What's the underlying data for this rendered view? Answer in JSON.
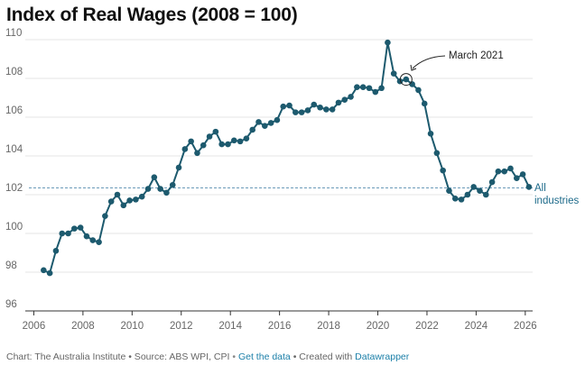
{
  "chart_data": {
    "type": "line",
    "title": "Index of Real Wages (2008 = 100)",
    "xlabel": "",
    "ylabel": "",
    "xlim": [
      2005.8,
      2026.3
    ],
    "ylim": [
      96,
      110
    ],
    "x_ticks": [
      "2006",
      "2008",
      "2010",
      "2012",
      "2014",
      "2016",
      "2018",
      "2020",
      "2022",
      "2024",
      "2026"
    ],
    "y_ticks": [
      "96",
      "98",
      "100",
      "102",
      "104",
      "106",
      "108",
      "110"
    ],
    "grid": true,
    "series": [
      {
        "name": "All industries",
        "color": "#1d5a6e",
        "points": [
          [
            2006.4,
            98.1
          ],
          [
            2006.65,
            97.95
          ],
          [
            2006.9,
            99.1
          ],
          [
            2007.15,
            100.0
          ],
          [
            2007.4,
            100.0
          ],
          [
            2007.65,
            100.25
          ],
          [
            2007.9,
            100.3
          ],
          [
            2008.15,
            99.85
          ],
          [
            2008.4,
            99.65
          ],
          [
            2008.65,
            99.55
          ],
          [
            2008.9,
            100.9
          ],
          [
            2009.15,
            101.65
          ],
          [
            2009.4,
            102.0
          ],
          [
            2009.65,
            101.45
          ],
          [
            2009.9,
            101.7
          ],
          [
            2010.15,
            101.75
          ],
          [
            2010.4,
            101.9
          ],
          [
            2010.65,
            102.3
          ],
          [
            2010.9,
            102.9
          ],
          [
            2011.15,
            102.3
          ],
          [
            2011.4,
            102.1
          ],
          [
            2011.65,
            102.5
          ],
          [
            2011.9,
            103.4
          ],
          [
            2012.15,
            104.35
          ],
          [
            2012.4,
            104.75
          ],
          [
            2012.65,
            104.15
          ],
          [
            2012.9,
            104.55
          ],
          [
            2013.15,
            105.0
          ],
          [
            2013.4,
            105.25
          ],
          [
            2013.65,
            104.6
          ],
          [
            2013.9,
            104.6
          ],
          [
            2014.15,
            104.8
          ],
          [
            2014.4,
            104.75
          ],
          [
            2014.65,
            104.9
          ],
          [
            2014.9,
            105.35
          ],
          [
            2015.15,
            105.75
          ],
          [
            2015.4,
            105.55
          ],
          [
            2015.65,
            105.7
          ],
          [
            2015.9,
            105.85
          ],
          [
            2016.15,
            106.55
          ],
          [
            2016.4,
            106.6
          ],
          [
            2016.65,
            106.25
          ],
          [
            2016.9,
            106.25
          ],
          [
            2017.15,
            106.35
          ],
          [
            2017.4,
            106.65
          ],
          [
            2017.65,
            106.5
          ],
          [
            2017.9,
            106.4
          ],
          [
            2018.15,
            106.4
          ],
          [
            2018.4,
            106.75
          ],
          [
            2018.65,
            106.9
          ],
          [
            2018.9,
            107.05
          ],
          [
            2019.15,
            107.55
          ],
          [
            2019.4,
            107.55
          ],
          [
            2019.65,
            107.5
          ],
          [
            2019.9,
            107.3
          ],
          [
            2020.15,
            107.5
          ],
          [
            2020.4,
            109.85
          ],
          [
            2020.65,
            108.25
          ],
          [
            2020.9,
            107.85
          ],
          [
            2021.15,
            107.95
          ],
          [
            2021.4,
            107.7
          ],
          [
            2021.65,
            107.4
          ],
          [
            2021.9,
            106.7
          ],
          [
            2022.15,
            105.15
          ],
          [
            2022.4,
            104.15
          ],
          [
            2022.65,
            103.25
          ],
          [
            2022.9,
            102.2
          ],
          [
            2023.15,
            101.8
          ],
          [
            2023.4,
            101.75
          ],
          [
            2023.65,
            102.0
          ],
          [
            2023.9,
            102.4
          ],
          [
            2024.15,
            102.2
          ],
          [
            2024.4,
            102.0
          ],
          [
            2024.65,
            102.65
          ],
          [
            2024.9,
            103.2
          ],
          [
            2025.15,
            103.2
          ],
          [
            2025.4,
            103.35
          ],
          [
            2025.65,
            102.85
          ],
          [
            2025.9,
            103.05
          ],
          [
            2026.15,
            102.4
          ]
        ]
      }
    ],
    "reference_line": {
      "y": 102.35,
      "label": [
        "All",
        "industries"
      ]
    },
    "annotation": {
      "text": "March 2021",
      "target": [
        2021.15,
        107.95
      ]
    }
  },
  "footer": {
    "credit": "Chart: The Australia Institute",
    "source": "• Source: ABS WPI, CPI",
    "separator": "•",
    "data_link": "Get the data",
    "created": "• Created with",
    "tool_link": "Datawrapper"
  }
}
